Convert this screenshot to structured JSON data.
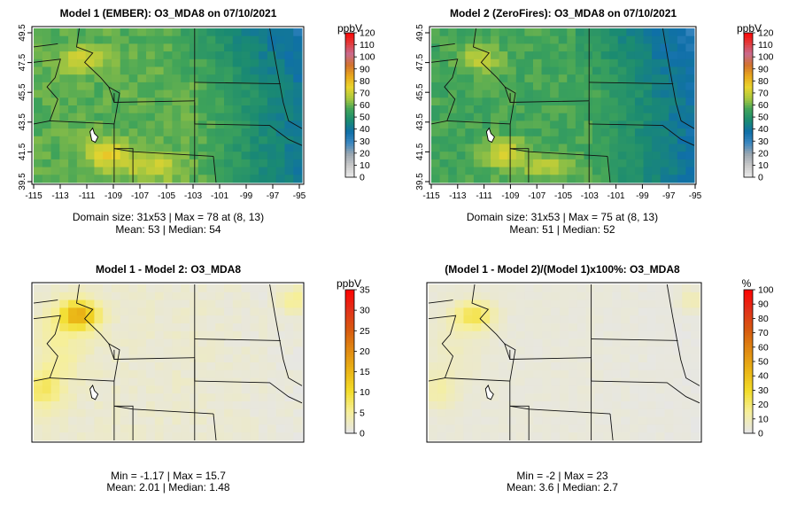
{
  "chart_data": [
    {
      "type": "heatmap",
      "title": "Model 1 (EMBER): O3_MDA8 on 07/10/2021",
      "unit": "ppbV",
      "x_ticks": [
        "-115",
        "-113",
        "-111",
        "-109",
        "-107",
        "-105",
        "-103",
        "-101",
        "-99",
        "-97",
        "-95"
      ],
      "y_ticks": [
        "39.5",
        "41.5",
        "43.5",
        "45.5",
        "47.5",
        "49.5"
      ],
      "xlim": [
        -115,
        -95
      ],
      "ylim": [
        39.5,
        49.5
      ],
      "colorbar_ticks": [
        "0",
        "10",
        "20",
        "30",
        "40",
        "50",
        "60",
        "70",
        "80",
        "90",
        "100",
        "110",
        "120"
      ],
      "colorbar_range": [
        0,
        120
      ],
      "grid": [
        31,
        53
      ],
      "stats_line1": "Domain size: 31x53 | Max = 78 at (8, 13)",
      "stats_line2": "Mean: 53 |  Median: 54",
      "stats": {
        "max": 78,
        "mean": 53,
        "median": 54
      }
    },
    {
      "type": "heatmap",
      "title": "Model 2 (ZeroFires): O3_MDA8 on 07/10/2021",
      "unit": "ppbV",
      "x_ticks": [
        "-115",
        "-113",
        "-111",
        "-109",
        "-107",
        "-105",
        "-103",
        "-101",
        "-99",
        "-97",
        "-95"
      ],
      "y_ticks": [
        "39.5",
        "41.5",
        "43.5",
        "45.5",
        "47.5",
        "49.5"
      ],
      "xlim": [
        -115,
        -95
      ],
      "ylim": [
        39.5,
        49.5
      ],
      "colorbar_ticks": [
        "0",
        "10",
        "20",
        "30",
        "40",
        "50",
        "60",
        "70",
        "80",
        "90",
        "100",
        "110",
        "120"
      ],
      "colorbar_range": [
        0,
        120
      ],
      "grid": [
        31,
        53
      ],
      "stats_line1": "Domain size: 31x53 | Max = 75 at (8, 13)",
      "stats_line2": "Mean: 51 |  Median: 52",
      "stats": {
        "max": 75,
        "mean": 51,
        "median": 52
      }
    },
    {
      "type": "heatmap",
      "title": "Model 1 - Model 2: O3_MDA8",
      "unit": "ppbV",
      "colorbar_ticks": [
        "0",
        "5",
        "10",
        "15",
        "20",
        "25",
        "30",
        "35"
      ],
      "colorbar_range": [
        0,
        35
      ],
      "stats_line1": "Min = -1.17 | Max = 15.7",
      "stats_line2": "Mean: 2.01 |  Median: 1.48",
      "stats": {
        "min": -1.17,
        "max": 15.7,
        "mean": 2.01,
        "median": 1.48
      }
    },
    {
      "type": "heatmap",
      "title": "(Model 1 - Model 2)/(Model 1)x100%: O3_MDA8",
      "unit": "%",
      "colorbar_ticks": [
        "0",
        "10",
        "20",
        "30",
        "40",
        "50",
        "60",
        "70",
        "80",
        "90",
        "100"
      ],
      "colorbar_range": [
        0,
        100
      ],
      "stats_line1": "Min = -2 | Max = 23",
      "stats_line2": "Mean: 3.6 |  Median: 2.7",
      "stats": {
        "min": -2,
        "max": 23,
        "mean": 3.6,
        "median": 2.7
      }
    }
  ],
  "colors": {
    "abs_scale": [
      "#e8e8e8",
      "#c8c8c8",
      "#9aa6b0",
      "#3b87c0",
      "#0f6fa8",
      "#1a8a72",
      "#3ea35a",
      "#a9c83e",
      "#e9d52e",
      "#e8a81c",
      "#d2722e",
      "#c96b8f",
      "#e23a3a",
      "#ff0000"
    ],
    "diff_scale": [
      "#e6e6e6",
      "#f6ef9a",
      "#f3dd2a",
      "#eab516",
      "#e08a12",
      "#d75a10",
      "#e2301a",
      "#ff0000"
    ]
  }
}
